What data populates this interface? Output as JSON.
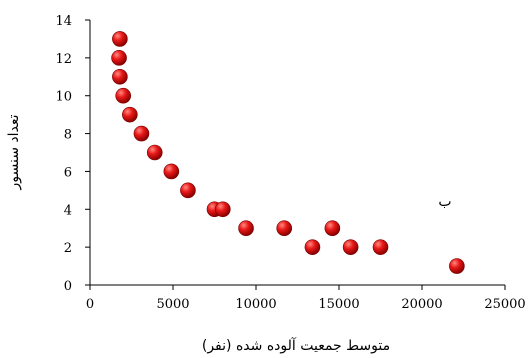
{
  "chart_data": {
    "type": "scatter",
    "title": "",
    "xlabel": "متوسط جمعیت آلوده شده (نفر)",
    "ylabel": "تعداد سنسور",
    "xlim": [
      0,
      25000
    ],
    "ylim": [
      0,
      14
    ],
    "x_ticks": [
      "0",
      "5000",
      "10000",
      "15000",
      "20000",
      "25000"
    ],
    "y_ticks": [
      "0",
      "2",
      "4",
      "6",
      "8",
      "10",
      "12",
      "14"
    ],
    "grid": false,
    "annotation": "ب",
    "marker_color": "#e01010",
    "points": [
      {
        "x": 1800,
        "y": 13
      },
      {
        "x": 1750,
        "y": 12
      },
      {
        "x": 1800,
        "y": 11
      },
      {
        "x": 2000,
        "y": 10
      },
      {
        "x": 2400,
        "y": 9
      },
      {
        "x": 3100,
        "y": 8
      },
      {
        "x": 3900,
        "y": 7
      },
      {
        "x": 4900,
        "y": 6
      },
      {
        "x": 5900,
        "y": 5
      },
      {
        "x": 7500,
        "y": 4
      },
      {
        "x": 8000,
        "y": 4
      },
      {
        "x": 9400,
        "y": 3
      },
      {
        "x": 11700,
        "y": 3
      },
      {
        "x": 14600,
        "y": 3
      },
      {
        "x": 13400,
        "y": 2
      },
      {
        "x": 15700,
        "y": 2
      },
      {
        "x": 17500,
        "y": 2
      },
      {
        "x": 22100,
        "y": 1
      }
    ]
  }
}
